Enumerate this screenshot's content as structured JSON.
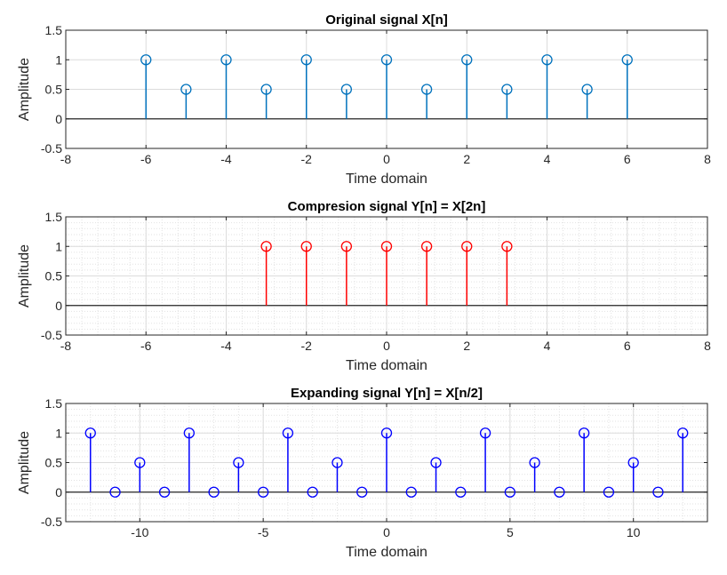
{
  "chart_data": [
    {
      "type": "stem",
      "title": "Original signal X[n]",
      "xlabel": "Time domain",
      "ylabel": "Amplitude",
      "xlim": [
        -8,
        8
      ],
      "ylim": [
        -0.5,
        1.5
      ],
      "xticks": [
        -8,
        -6,
        -4,
        -2,
        0,
        2,
        4,
        6,
        8
      ],
      "yticks": [
        -0.5,
        0,
        0.5,
        1,
        1.5
      ],
      "xtick_labels": [
        "-8",
        "-6",
        "-4",
        "-2",
        "0",
        "2",
        "4",
        "6",
        "8"
      ],
      "ytick_labels": [
        "-0.5",
        "0",
        "0.5",
        "1",
        "1.5"
      ],
      "grid": "major",
      "color": "#0072bd",
      "x": [
        -6,
        -5,
        -4,
        -3,
        -2,
        -1,
        0,
        1,
        2,
        3,
        4,
        5,
        6
      ],
      "y": [
        1,
        0.5,
        1,
        0.5,
        1,
        0.5,
        1,
        0.5,
        1,
        0.5,
        1,
        0.5,
        1
      ]
    },
    {
      "type": "stem",
      "title": "Compresion signal Y[n] = X[2n]",
      "xlabel": "Time domain",
      "ylabel": "Amplitude",
      "xlim": [
        -8,
        8
      ],
      "ylim": [
        -0.5,
        1.5
      ],
      "xticks": [
        -8,
        -6,
        -4,
        -2,
        0,
        2,
        4,
        6,
        8
      ],
      "yticks": [
        -0.5,
        0,
        0.5,
        1,
        1.5
      ],
      "xtick_labels": [
        "-8",
        "-6",
        "-4",
        "-2",
        "0",
        "2",
        "4",
        "6",
        "8"
      ],
      "ytick_labels": [
        "-0.5",
        "0",
        "0.5",
        "1",
        "1.5"
      ],
      "grid": "major+minor",
      "color": "#ff0000",
      "x": [
        -3,
        -2,
        -1,
        0,
        1,
        2,
        3
      ],
      "y": [
        1,
        1,
        1,
        1,
        1,
        1,
        1
      ]
    },
    {
      "type": "stem",
      "title": "Expanding signal Y[n] = X[n/2]",
      "xlabel": "Time domain",
      "ylabel": "Amplitude",
      "xlim": [
        -13,
        13
      ],
      "ylim": [
        -0.5,
        1.5
      ],
      "xticks": [
        -10,
        -5,
        0,
        5,
        10
      ],
      "yticks": [
        -0.5,
        0,
        0.5,
        1,
        1.5
      ],
      "xtick_labels": [
        "-10",
        "-5",
        "0",
        "5",
        "10"
      ],
      "ytick_labels": [
        "-0.5",
        "0",
        "0.5",
        "1",
        "1.5"
      ],
      "grid": "major+minor",
      "color": "#0000ff",
      "x": [
        -12,
        -11,
        -10,
        -9,
        -8,
        -7,
        -6,
        -5,
        -4,
        -3,
        -2,
        -1,
        0,
        1,
        2,
        3,
        4,
        5,
        6,
        7,
        8,
        9,
        10,
        11,
        12
      ],
      "y": [
        1,
        0,
        0.5,
        0,
        1,
        0,
        0.5,
        0,
        1,
        0,
        0.5,
        0,
        1,
        0,
        0.5,
        0,
        1,
        0,
        0.5,
        0,
        1,
        0,
        0.5,
        0,
        1
      ]
    }
  ]
}
